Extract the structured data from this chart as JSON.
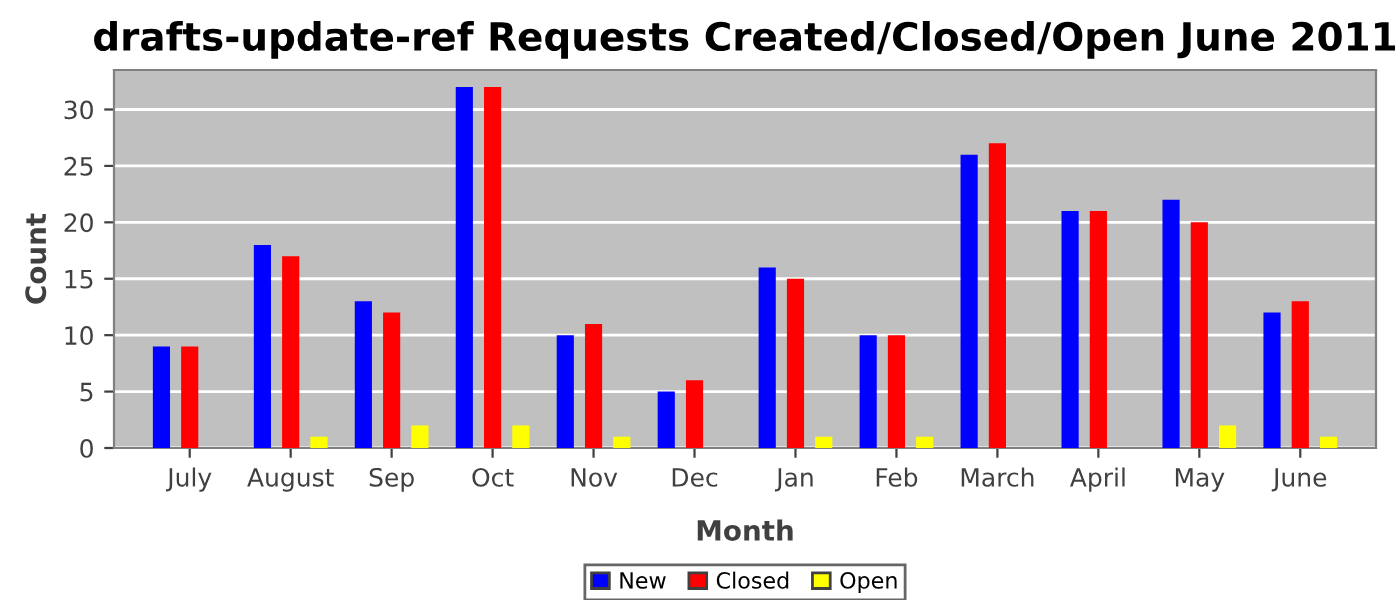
{
  "chart_data": {
    "type": "bar",
    "title": "drafts-update-ref Requests Created/Closed/Open June 2011",
    "xlabel": "Month",
    "ylabel": "Count",
    "categories": [
      "July",
      "August",
      "Sep",
      "Oct",
      "Nov",
      "Dec",
      "Jan",
      "Feb",
      "March",
      "April",
      "May",
      "June"
    ],
    "series": [
      {
        "name": "New",
        "color": "#0000ff",
        "values": [
          9,
          18,
          13,
          32,
          10,
          5,
          16,
          10,
          26,
          21,
          22,
          12
        ]
      },
      {
        "name": "Closed",
        "color": "#ff0000",
        "values": [
          9,
          17,
          12,
          32,
          11,
          6,
          15,
          10,
          27,
          21,
          20,
          13
        ]
      },
      {
        "name": "Open",
        "color": "#ffff00",
        "values": [
          0,
          1,
          2,
          2,
          1,
          0,
          1,
          1,
          0,
          0,
          2,
          1
        ]
      }
    ],
    "ylim": [
      0,
      33.5
    ],
    "yticks": [
      0,
      5,
      10,
      15,
      20,
      25,
      30
    ],
    "grid": "y",
    "legend": "bottom"
  }
}
